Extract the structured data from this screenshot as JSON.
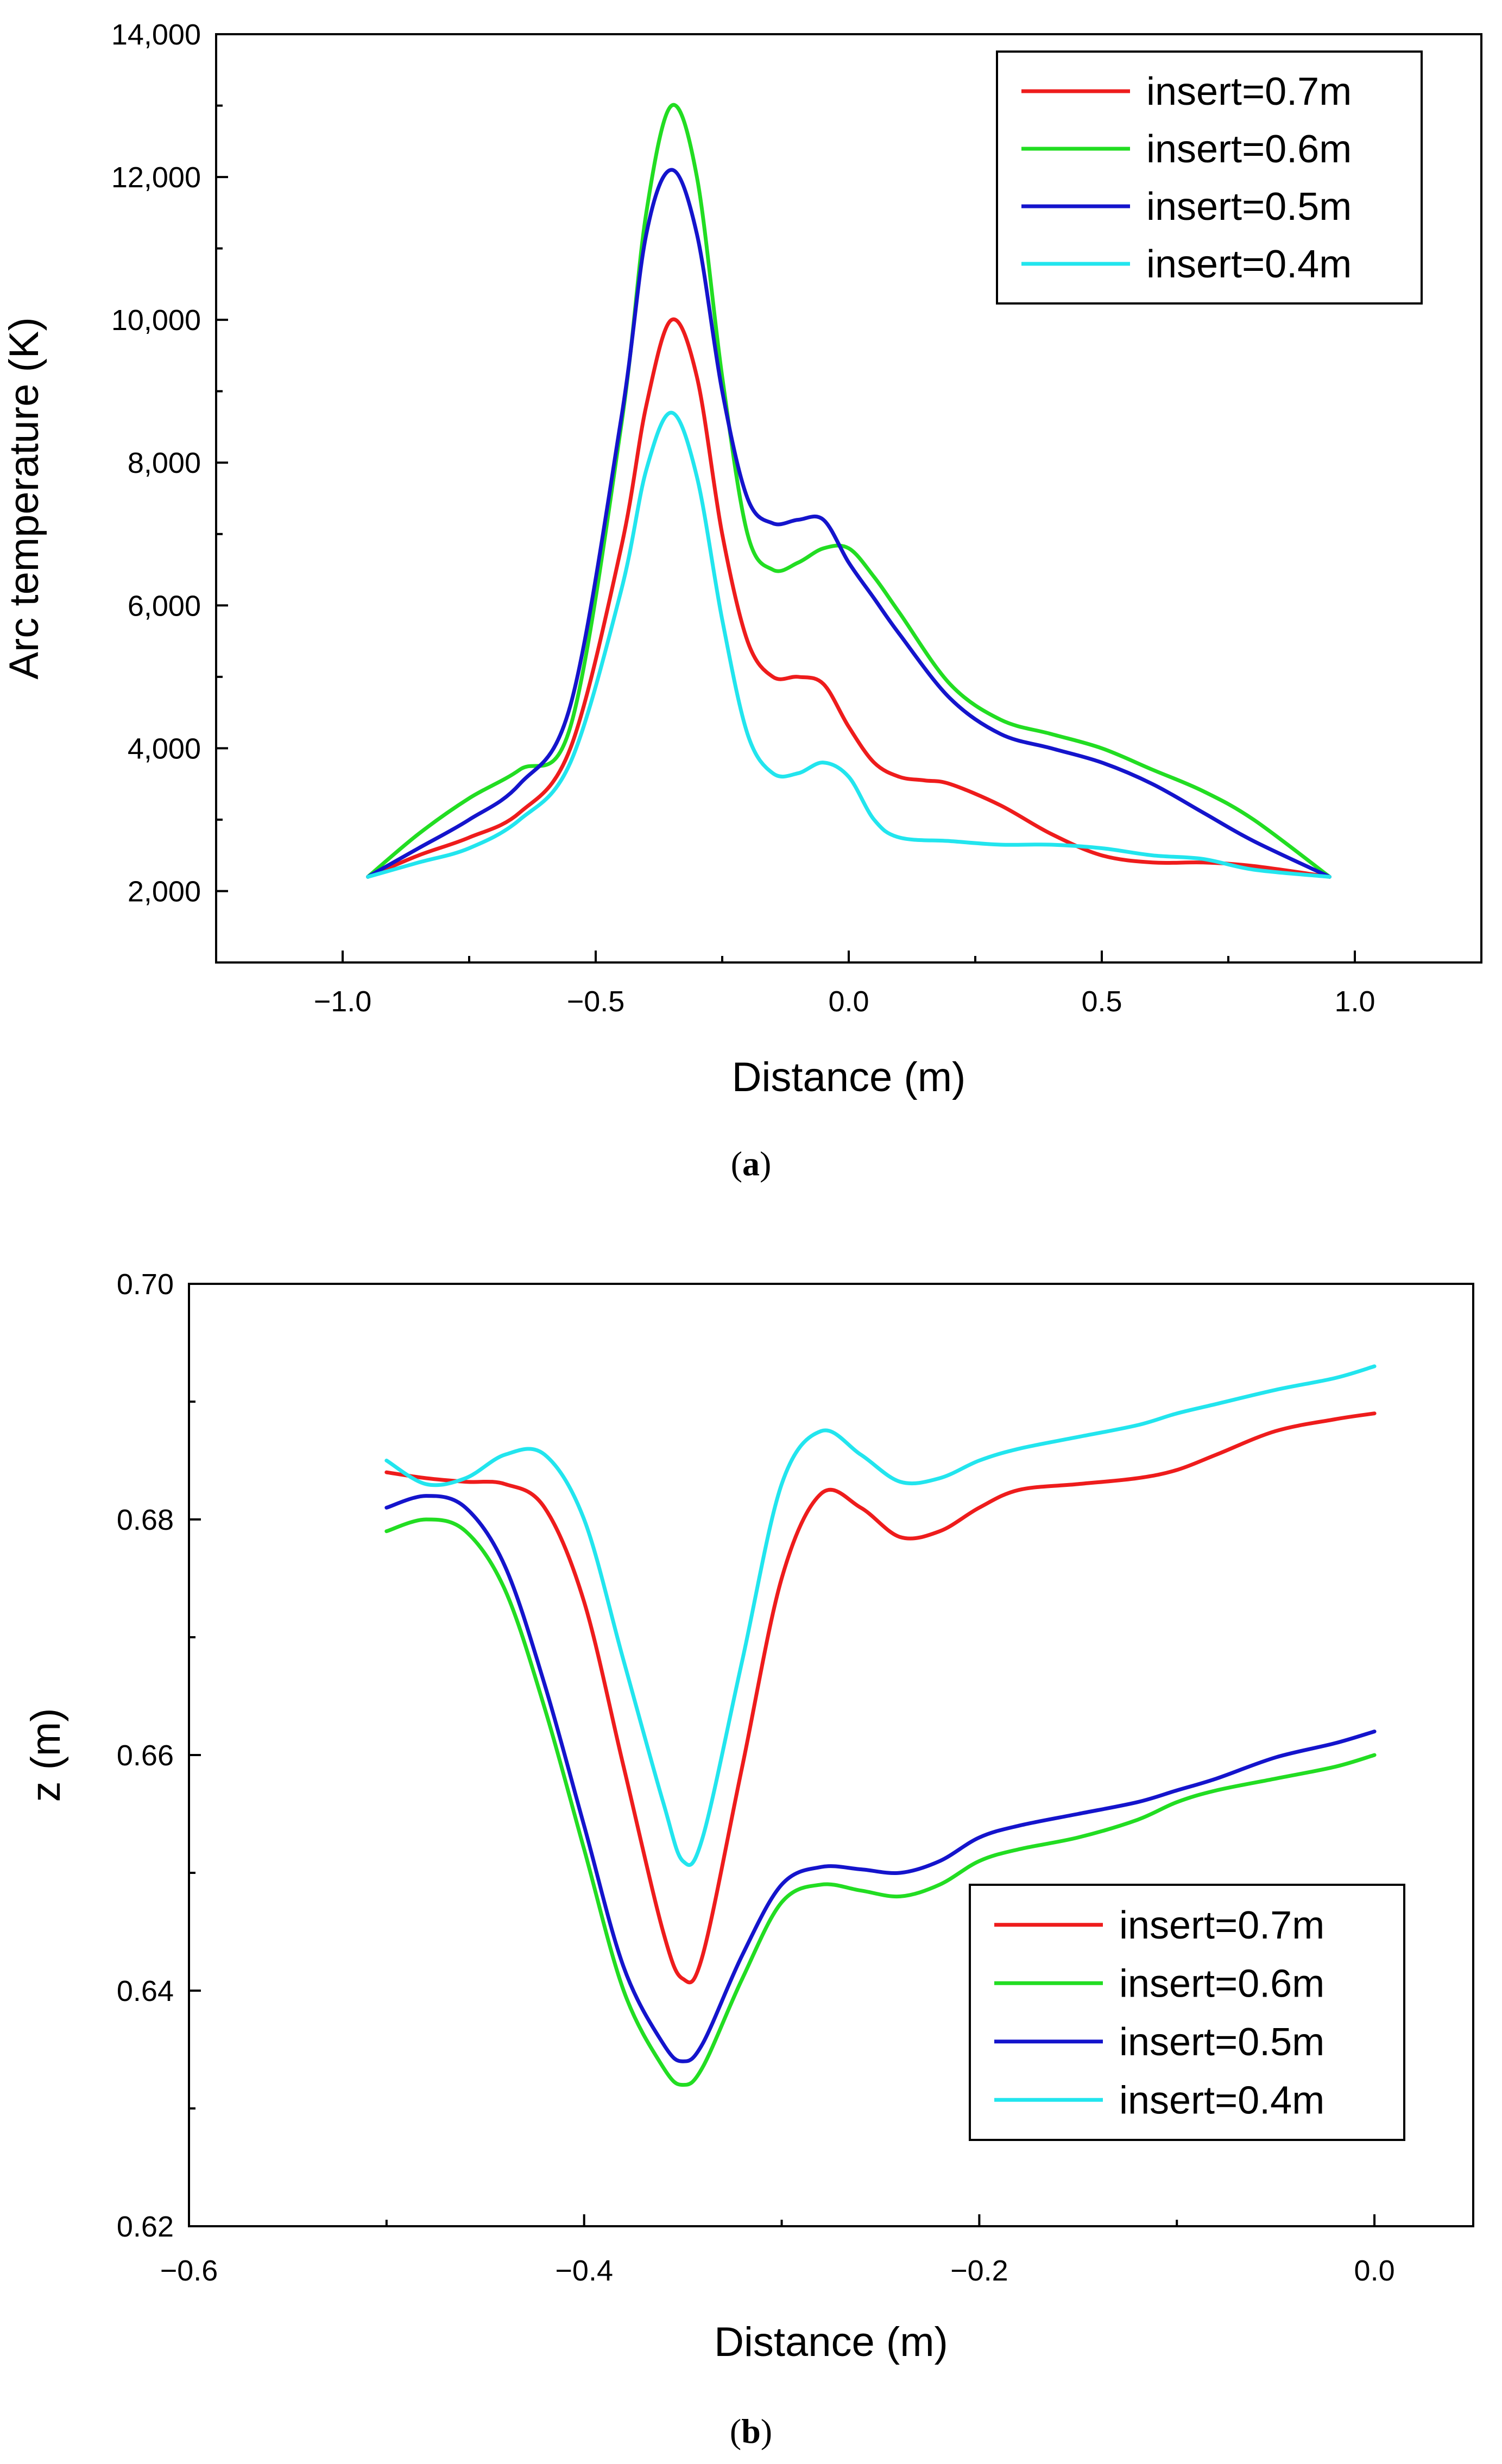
{
  "chart_data": [
    {
      "type": "line",
      "panel": "a",
      "caption": "a",
      "xlabel": "Distance (m)",
      "ylabel": "Arc temperature (K)",
      "xlim": [
        -1.25,
        1.25
      ],
      "ylim": [
        1000,
        14000
      ],
      "xticks": [
        -1.0,
        -0.5,
        0.0,
        0.5,
        1.0
      ],
      "xtick_labels": [
        "−1.0",
        "−0.5",
        "0.0",
        "0.5",
        "1.0"
      ],
      "yticks": [
        2000,
        4000,
        6000,
        8000,
        10000,
        12000,
        14000
      ],
      "ytick_labels": [
        "2,000",
        "4,000",
        "6,000",
        "8,000",
        "10,000",
        "12,000",
        "14,000"
      ],
      "legend_position": "top-right",
      "series": [
        {
          "name": "insert=0.7m",
          "color": "#ee1c1c",
          "x": [
            -0.95,
            -0.85,
            -0.75,
            -0.65,
            -0.55,
            -0.45,
            -0.4,
            -0.35,
            -0.3,
            -0.25,
            -0.2,
            -0.15,
            -0.1,
            -0.05,
            0.0,
            0.05,
            0.1,
            0.15,
            0.2,
            0.3,
            0.4,
            0.5,
            0.6,
            0.7,
            0.8,
            0.95
          ],
          "y": [
            2200,
            2500,
            2750,
            3100,
            4000,
            6800,
            8800,
            10000,
            9200,
            7000,
            5500,
            5000,
            5000,
            4900,
            4300,
            3800,
            3600,
            3550,
            3500,
            3200,
            2800,
            2500,
            2400,
            2400,
            2350,
            2200
          ]
        },
        {
          "name": "insert=0.6m",
          "color": "#22dd22",
          "x": [
            -0.95,
            -0.85,
            -0.75,
            -0.65,
            -0.55,
            -0.45,
            -0.4,
            -0.35,
            -0.3,
            -0.25,
            -0.2,
            -0.15,
            -0.1,
            -0.05,
            0.0,
            0.05,
            0.1,
            0.2,
            0.3,
            0.4,
            0.5,
            0.6,
            0.7,
            0.8,
            0.95
          ],
          "y": [
            2200,
            2800,
            3300,
            3700,
            4300,
            8500,
            11500,
            13000,
            12000,
            9200,
            7000,
            6500,
            6600,
            6800,
            6800,
            6400,
            5900,
            4900,
            4400,
            4200,
            4000,
            3700,
            3400,
            3000,
            2200
          ]
        },
        {
          "name": "insert=0.5m",
          "color": "#1414cc",
          "x": [
            -0.95,
            -0.85,
            -0.75,
            -0.65,
            -0.55,
            -0.45,
            -0.4,
            -0.35,
            -0.3,
            -0.25,
            -0.2,
            -0.15,
            -0.1,
            -0.05,
            0.0,
            0.05,
            0.1,
            0.2,
            0.3,
            0.4,
            0.5,
            0.6,
            0.7,
            0.8,
            0.95
          ],
          "y": [
            2200,
            2600,
            3000,
            3500,
            4600,
            8600,
            11200,
            12100,
            11200,
            9000,
            7500,
            7150,
            7200,
            7200,
            6600,
            6100,
            5600,
            4700,
            4200,
            4000,
            3800,
            3500,
            3100,
            2700,
            2200
          ]
        },
        {
          "name": "insert=0.4m",
          "color": "#22e5ee",
          "x": [
            -0.95,
            -0.85,
            -0.75,
            -0.65,
            -0.55,
            -0.45,
            -0.4,
            -0.35,
            -0.3,
            -0.25,
            -0.2,
            -0.15,
            -0.1,
            -0.05,
            0.0,
            0.05,
            0.1,
            0.2,
            0.3,
            0.4,
            0.5,
            0.6,
            0.7,
            0.8,
            0.95
          ],
          "y": [
            2200,
            2400,
            2600,
            3000,
            3800,
            6200,
            7900,
            8700,
            7800,
            5800,
            4200,
            3650,
            3650,
            3800,
            3600,
            3000,
            2750,
            2700,
            2650,
            2650,
            2600,
            2500,
            2450,
            2300,
            2200
          ]
        }
      ]
    },
    {
      "type": "line",
      "panel": "b",
      "caption": "b",
      "xlabel": "Distance (m)",
      "ylabel": "z (m)",
      "xlim": [
        -0.6,
        0.05
      ],
      "ylim": [
        0.62,
        0.7
      ],
      "xticks": [
        -0.6,
        -0.4,
        -0.2,
        0.0
      ],
      "xtick_labels": [
        "−0.6",
        "−0.4",
        "−0.2",
        "0.0"
      ],
      "yticks": [
        0.62,
        0.64,
        0.66,
        0.68,
        0.7
      ],
      "ytick_labels": [
        "0.62",
        "0.64",
        "0.66",
        "0.68",
        "0.70"
      ],
      "legend_position": "bottom-right",
      "series": [
        {
          "name": "insert=0.7m",
          "color": "#ee1c1c",
          "x": [
            -0.5,
            -0.48,
            -0.46,
            -0.44,
            -0.42,
            -0.4,
            -0.38,
            -0.36,
            -0.35,
            -0.34,
            -0.32,
            -0.3,
            -0.28,
            -0.26,
            -0.24,
            -0.22,
            -0.2,
            -0.18,
            -0.15,
            -0.12,
            -0.1,
            -0.08,
            -0.05,
            -0.02,
            0.0
          ],
          "y": [
            0.684,
            0.6835,
            0.6832,
            0.683,
            0.681,
            0.673,
            0.659,
            0.645,
            0.641,
            0.643,
            0.659,
            0.675,
            0.6822,
            0.681,
            0.6785,
            0.679,
            0.681,
            0.6825,
            0.683,
            0.6835,
            0.6842,
            0.6855,
            0.6875,
            0.6885,
            0.689
          ]
        },
        {
          "name": "insert=0.6m",
          "color": "#22dd22",
          "x": [
            -0.5,
            -0.48,
            -0.46,
            -0.44,
            -0.42,
            -0.4,
            -0.38,
            -0.36,
            -0.35,
            -0.34,
            -0.32,
            -0.3,
            -0.28,
            -0.26,
            -0.24,
            -0.22,
            -0.2,
            -0.18,
            -0.15,
            -0.12,
            -0.1,
            -0.08,
            -0.05,
            -0.02,
            0.0
          ],
          "y": [
            0.679,
            0.68,
            0.679,
            0.674,
            0.664,
            0.652,
            0.64,
            0.6335,
            0.632,
            0.6335,
            0.641,
            0.6475,
            0.649,
            0.6485,
            0.648,
            0.649,
            0.651,
            0.652,
            0.653,
            0.6545,
            0.656,
            0.657,
            0.658,
            0.659,
            0.66
          ]
        },
        {
          "name": "insert=0.5m",
          "color": "#1414cc",
          "x": [
            -0.5,
            -0.48,
            -0.46,
            -0.44,
            -0.42,
            -0.4,
            -0.38,
            -0.36,
            -0.35,
            -0.34,
            -0.32,
            -0.3,
            -0.28,
            -0.26,
            -0.24,
            -0.22,
            -0.2,
            -0.18,
            -0.15,
            -0.12,
            -0.1,
            -0.08,
            -0.05,
            -0.02,
            0.0
          ],
          "y": [
            0.681,
            0.682,
            0.681,
            0.676,
            0.666,
            0.654,
            0.642,
            0.6355,
            0.634,
            0.6355,
            0.643,
            0.649,
            0.6505,
            0.6503,
            0.65,
            0.651,
            0.653,
            0.654,
            0.655,
            0.656,
            0.657,
            0.658,
            0.6598,
            0.661,
            0.662
          ]
        },
        {
          "name": "insert=0.4m",
          "color": "#22e5ee",
          "x": [
            -0.5,
            -0.48,
            -0.46,
            -0.44,
            -0.42,
            -0.4,
            -0.38,
            -0.36,
            -0.35,
            -0.34,
            -0.32,
            -0.3,
            -0.28,
            -0.26,
            -0.24,
            -0.22,
            -0.2,
            -0.18,
            -0.15,
            -0.12,
            -0.1,
            -0.08,
            -0.05,
            -0.02,
            0.0
          ],
          "y": [
            0.685,
            0.683,
            0.6835,
            0.6855,
            0.6855,
            0.68,
            0.668,
            0.656,
            0.651,
            0.653,
            0.668,
            0.683,
            0.6875,
            0.6855,
            0.6832,
            0.6835,
            0.685,
            0.686,
            0.687,
            0.688,
            0.689,
            0.6898,
            0.691,
            0.692,
            0.693
          ]
        }
      ]
    }
  ]
}
